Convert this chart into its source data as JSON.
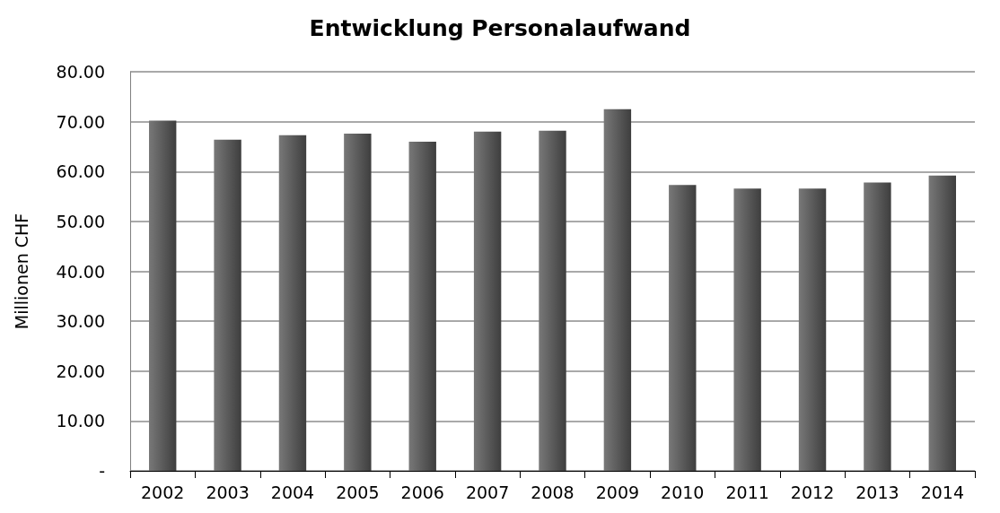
{
  "chart_data": {
    "type": "bar",
    "title": "Entwicklung Personalaufwand",
    "ylabel": "Millionen CHF",
    "categories": [
      "2002",
      "2003",
      "2004",
      "2005",
      "2006",
      "2007",
      "2008",
      "2009",
      "2010",
      "2011",
      "2012",
      "2013",
      "2014"
    ],
    "values": [
      70.2,
      66.4,
      67.3,
      67.6,
      66.0,
      68.0,
      68.2,
      72.5,
      57.3,
      56.6,
      56.6,
      57.8,
      59.2
    ],
    "color": "#595959",
    "ylim": [
      0,
      80
    ],
    "yticks": [
      {
        "value": 0,
        "label": "-"
      },
      {
        "value": 10,
        "label": "10.00"
      },
      {
        "value": 20,
        "label": "20.00"
      },
      {
        "value": 30,
        "label": "30.00"
      },
      {
        "value": 40,
        "label": "40.00"
      },
      {
        "value": 50,
        "label": "50.00"
      },
      {
        "value": 60,
        "label": "60.00"
      },
      {
        "value": 70,
        "label": "70.00"
      },
      {
        "value": 80,
        "label": "80.00"
      }
    ],
    "grid": "y"
  }
}
